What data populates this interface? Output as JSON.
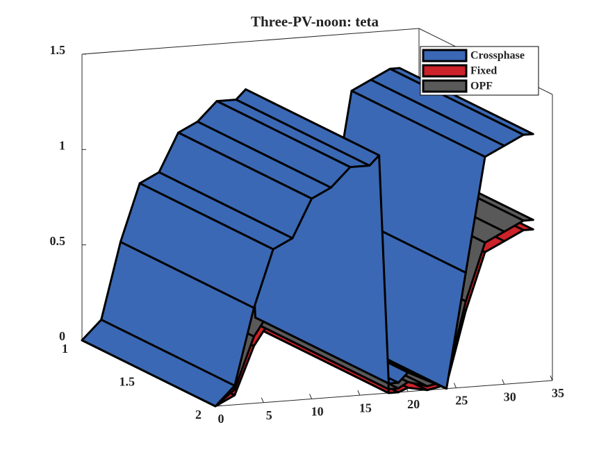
{
  "chart_data": {
    "type": "surface3d",
    "title": "Three-PV-noon: teta",
    "x": [
      0,
      2,
      4,
      6,
      8,
      10,
      12,
      14,
      16,
      17,
      18,
      19,
      20,
      22,
      24,
      26,
      28,
      30,
      32,
      33
    ],
    "series": [
      {
        "name": "Crossphase",
        "color": "#3a68b4",
        "values": [
          0,
          0.1,
          0.5,
          0.8,
          0.85,
          1.05,
          1.1,
          1.2,
          1.2,
          1.25,
          0.05,
          0.05,
          0.1,
          0.05,
          0,
          0.6,
          1.2,
          1.25,
          1.3,
          1.3
        ]
      },
      {
        "name": "Fixed",
        "color": "#cc2229",
        "values": [
          0,
          0.05,
          0.3,
          0.45,
          0.5,
          0.55,
          0.6,
          0.65,
          0.7,
          0.72,
          0,
          0,
          0.02,
          0,
          0.02,
          0.4,
          0.7,
          0.75,
          0.8,
          0.8
        ]
      },
      {
        "name": "OPF",
        "color": "#595959",
        "values": [
          0,
          0.08,
          0.35,
          0.5,
          0.55,
          0.6,
          0.65,
          0.7,
          0.75,
          0.77,
          0.02,
          0.02,
          0.05,
          0.02,
          0.04,
          0.45,
          0.75,
          0.8,
          0.85,
          0.85
        ]
      }
    ],
    "xlim": [
      0,
      35
    ],
    "xticks": [
      0,
      5,
      10,
      15,
      20,
      25,
      30,
      35
    ],
    "ylim": [
      1,
      2
    ],
    "yticks": [
      1,
      1.5,
      2
    ],
    "zlim": [
      0,
      1.5
    ],
    "zticks": [
      0,
      0.5,
      1,
      1.5
    ],
    "legend": "northeast"
  }
}
